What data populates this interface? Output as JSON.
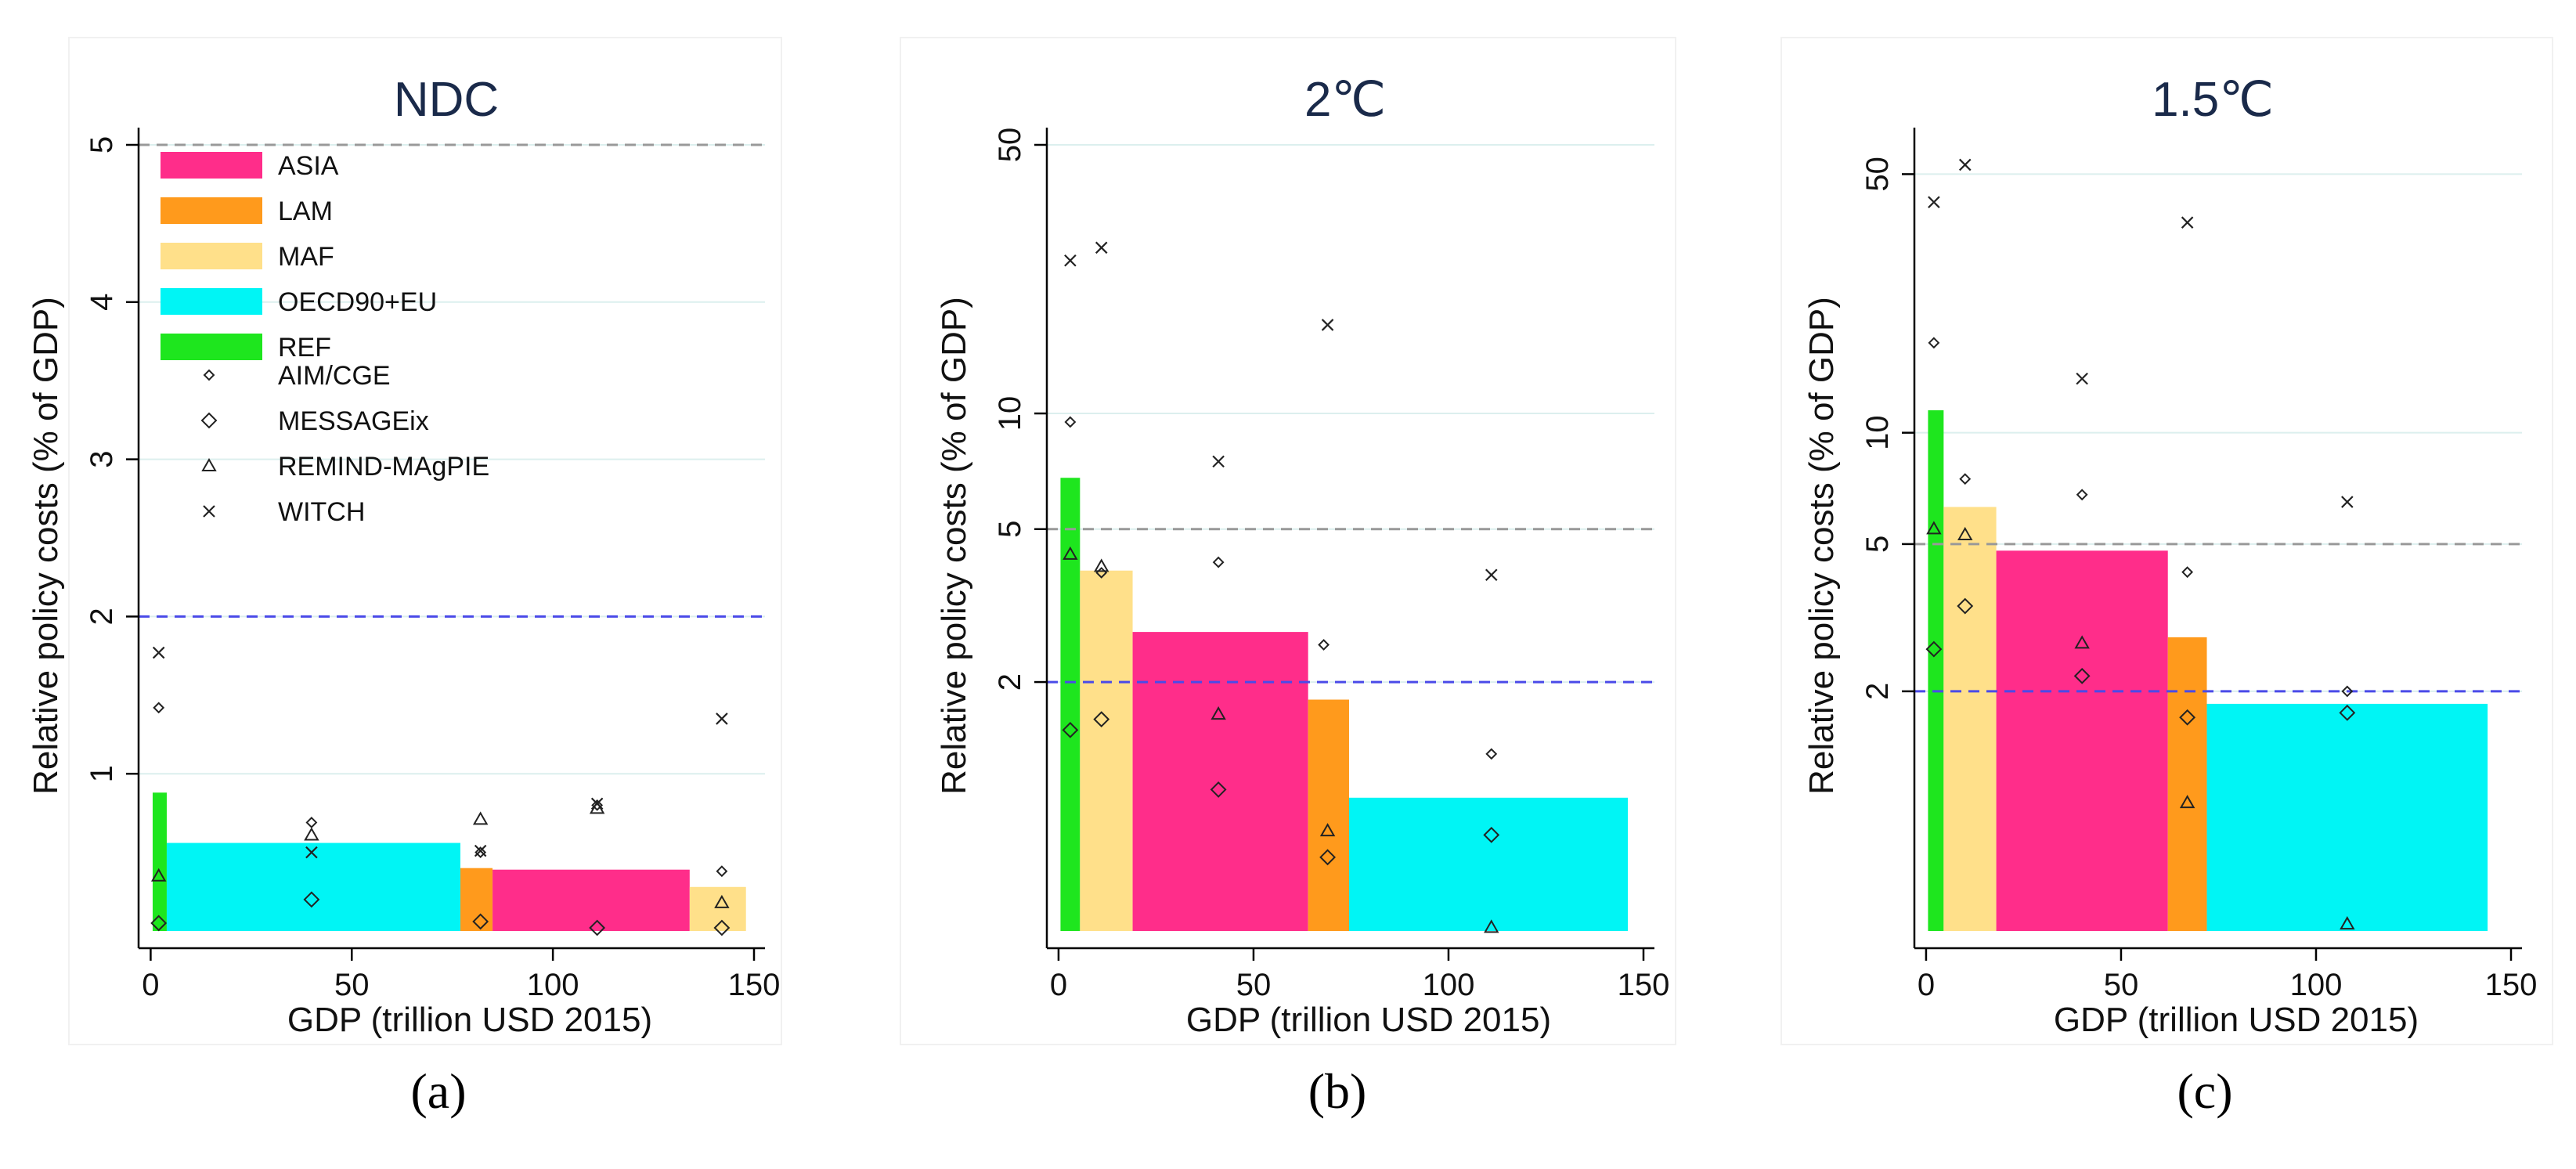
{
  "chart_data": [
    {
      "type": "bar",
      "panel_label": "(a)",
      "title": "NDC",
      "xlabel": "GDP (trillion USD 2015)",
      "ylabel": "Relative policy costs (% of GDP)",
      "y_scale": "linear",
      "xlim": [
        -3,
        150
      ],
      "ylim": [
        0,
        5
      ],
      "xticks": [
        0,
        50,
        100,
        150
      ],
      "yticks": [
        1,
        2,
        3,
        4,
        5
      ],
      "reference_lines": [
        {
          "y": 5,
          "color": "#999999"
        },
        {
          "y": 2,
          "color": "#4a4ae8"
        }
      ],
      "bars": [
        {
          "region": "REF",
          "x0": 0.5,
          "x1": 4,
          "value": 0.88
        },
        {
          "region": "OECD90+EU",
          "x0": 4,
          "x1": 77,
          "value": 0.56
        },
        {
          "region": "LAM",
          "x0": 77,
          "x1": 85,
          "value": 0.4
        },
        {
          "region": "ASIA",
          "x0": 85,
          "x1": 134,
          "value": 0.39
        },
        {
          "region": "MAF",
          "x0": 134,
          "x1": 148,
          "value": 0.28
        }
      ],
      "models": [
        {
          "name": "AIM/CGE",
          "points": [
            [
              2,
              1.42
            ],
            [
              40,
              0.69
            ],
            [
              82,
              0.5
            ],
            [
              111,
              0.8
            ],
            [
              142,
              0.38
            ]
          ]
        },
        {
          "name": "MESSAGEix",
          "points": [
            [
              2,
              0.05
            ],
            [
              40,
              0.2
            ],
            [
              82,
              0.06
            ],
            [
              111,
              0.02
            ],
            [
              142,
              0.02
            ]
          ]
        },
        {
          "name": "REMIND-MAgPIE",
          "points": [
            [
              2,
              0.35
            ],
            [
              40,
              0.61
            ],
            [
              82,
              0.71
            ],
            [
              111,
              0.78
            ],
            [
              142,
              0.18
            ]
          ]
        },
        {
          "name": "WITCH",
          "points": [
            [
              2,
              1.77
            ],
            [
              40,
              0.5
            ],
            [
              82,
              0.51
            ],
            [
              111,
              0.81
            ],
            [
              142,
              1.35
            ]
          ]
        }
      ]
    },
    {
      "type": "bar",
      "panel_label": "(b)",
      "title": "2℃",
      "xlabel": "GDP (trillion USD 2015)",
      "ylabel": "Relative policy costs (% of GDP)",
      "y_scale": "log",
      "xlim": [
        -3,
        150
      ],
      "ylim": [
        0.45,
        50
      ],
      "xticks": [
        0,
        50,
        100,
        150
      ],
      "yticks": [
        2,
        5,
        10,
        50
      ],
      "reference_lines": [
        {
          "y": 5,
          "color": "#999999"
        },
        {
          "y": 2,
          "color": "#4a4ae8"
        }
      ],
      "bars": [
        {
          "region": "REF",
          "x0": 0.5,
          "x1": 5.5,
          "value": 6.8
        },
        {
          "region": "MAF",
          "x0": 5.5,
          "x1": 19,
          "value": 3.9
        },
        {
          "region": "ASIA",
          "x0": 19,
          "x1": 64,
          "value": 2.7
        },
        {
          "region": "LAM",
          "x0": 64,
          "x1": 74.5,
          "value": 1.8
        },
        {
          "region": "OECD90+EU",
          "x0": 74.5,
          "x1": 146,
          "value": 1.0
        }
      ],
      "models": [
        {
          "name": "AIM/CGE",
          "points": [
            [
              3,
              9.5
            ],
            [
              11,
              3.85
            ],
            [
              41,
              4.1
            ],
            [
              68,
              2.5
            ],
            [
              111,
              1.3
            ]
          ]
        },
        {
          "name": "MESSAGEix",
          "points": [
            [
              3,
              1.5
            ],
            [
              11,
              1.6
            ],
            [
              41,
              1.05
            ],
            [
              69,
              0.7
            ],
            [
              111,
              0.8
            ]
          ]
        },
        {
          "name": "REMIND-MAgPIE",
          "points": [
            [
              3,
              4.3
            ],
            [
              11,
              4.0
            ],
            [
              41,
              1.65
            ],
            [
              69,
              0.82
            ],
            [
              111,
              0.46
            ]
          ]
        },
        {
          "name": "WITCH",
          "points": [
            [
              3,
              25
            ],
            [
              11,
              27
            ],
            [
              41,
              7.5
            ],
            [
              69,
              17
            ],
            [
              111,
              3.8
            ]
          ]
        }
      ]
    },
    {
      "type": "bar",
      "panel_label": "(c)",
      "title": "1.5℃",
      "xlabel": "GDP (trillion USD 2015)",
      "ylabel": "Relative policy costs (% of GDP)",
      "y_scale": "log",
      "xlim": [
        -3,
        150
      ],
      "ylim": [
        0.45,
        60
      ],
      "xticks": [
        0,
        50,
        100,
        150
      ],
      "yticks": [
        2,
        5,
        10,
        50
      ],
      "reference_lines": [
        {
          "y": 5,
          "color": "#999999"
        },
        {
          "y": 2,
          "color": "#4a4ae8"
        }
      ],
      "bars": [
        {
          "region": "REF",
          "x0": 0.5,
          "x1": 4.5,
          "value": 11.5
        },
        {
          "region": "MAF",
          "x0": 4.5,
          "x1": 18,
          "value": 6.3
        },
        {
          "region": "ASIA",
          "x0": 18,
          "x1": 62,
          "value": 4.8
        },
        {
          "region": "LAM",
          "x0": 62,
          "x1": 72,
          "value": 2.8
        },
        {
          "region": "OECD90+EU",
          "x0": 72,
          "x1": 144,
          "value": 1.85
        }
      ],
      "models": [
        {
          "name": "AIM/CGE",
          "points": [
            [
              2,
              17.5
            ],
            [
              10,
              7.5
            ],
            [
              40,
              6.8
            ],
            [
              67,
              4.2
            ],
            [
              108,
              2.0
            ]
          ]
        },
        {
          "name": "MESSAGEix",
          "points": [
            [
              2,
              2.6
            ],
            [
              10,
              3.4
            ],
            [
              40,
              2.2
            ],
            [
              67,
              1.7
            ],
            [
              108,
              1.75
            ]
          ]
        },
        {
          "name": "REMIND-MAgPIE",
          "points": [
            [
              2,
              5.5
            ],
            [
              10,
              5.3
            ],
            [
              40,
              2.7
            ],
            [
              67,
              1.0
            ],
            [
              108,
              0.47
            ]
          ]
        },
        {
          "name": "WITCH",
          "points": [
            [
              2,
              42
            ],
            [
              10,
              53
            ],
            [
              40,
              14
            ],
            [
              67,
              37
            ],
            [
              108,
              6.5
            ]
          ]
        }
      ]
    }
  ],
  "legend": {
    "regions": [
      {
        "name": "ASIA",
        "color": "#ff2d8a"
      },
      {
        "name": "LAM",
        "color": "#ff9a1c"
      },
      {
        "name": "MAF",
        "color": "#ffe08a"
      },
      {
        "name": "OECD90+EU",
        "color": "#00f5f5"
      },
      {
        "name": "REF",
        "color": "#1ee61e"
      }
    ],
    "models": [
      {
        "name": "AIM/CGE",
        "marker": "small-diamond"
      },
      {
        "name": "MESSAGEix",
        "marker": "diamond"
      },
      {
        "name": "REMIND-MAgPIE",
        "marker": "triangle"
      },
      {
        "name": "WITCH",
        "marker": "cross"
      }
    ]
  },
  "colors": {
    "grid": "#dcefee",
    "axis": "#000000",
    "marker": "#222222",
    "ref_grey": "#999999",
    "ref_blue": "#4a4ae8"
  }
}
